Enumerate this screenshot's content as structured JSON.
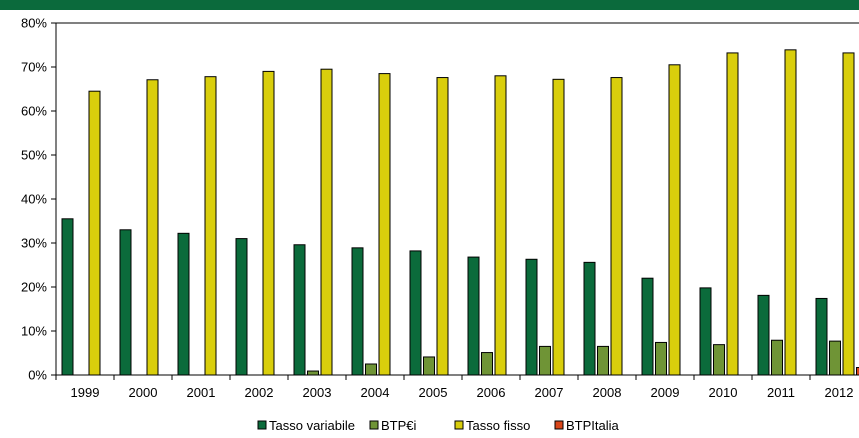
{
  "colors": {
    "top_bar": "#0b6a3c",
    "axis": "#000000"
  },
  "chart_data": {
    "type": "bar",
    "title": "",
    "xlabel": "",
    "ylabel": "",
    "categories": [
      "1999",
      "2000",
      "2001",
      "2002",
      "2003",
      "2004",
      "2005",
      "2006",
      "2007",
      "2008",
      "2009",
      "2010",
      "2011",
      "2012"
    ],
    "ylim": [
      0,
      80
    ],
    "yticks": [
      "0%",
      "10%",
      "20%",
      "30%",
      "40%",
      "50%",
      "60%",
      "70%",
      "80%"
    ],
    "grid": false,
    "legend_position": "bottom",
    "series": [
      {
        "name": "Tasso variabile",
        "color": "#0b6b3b",
        "values": [
          35.5,
          33.0,
          32.2,
          31.0,
          29.6,
          28.9,
          28.2,
          26.8,
          26.3,
          25.6,
          22.0,
          19.8,
          18.1,
          17.4
        ]
      },
      {
        "name": "BTP€i",
        "color": "#6f9436",
        "values": [
          0,
          0,
          0,
          0,
          0.9,
          2.5,
          4.1,
          5.1,
          6.5,
          6.5,
          7.4,
          6.9,
          7.9,
          7.7
        ]
      },
      {
        "name": "Tasso fisso",
        "color": "#d9ce0c",
        "values": [
          64.5,
          67.1,
          67.8,
          69.0,
          69.5,
          68.5,
          67.6,
          68.0,
          67.2,
          67.6,
          70.5,
          73.2,
          73.9,
          73.2
        ]
      },
      {
        "name": "BTPItalia",
        "color": "#d9461a",
        "values": [
          0,
          0,
          0,
          0,
          0,
          0,
          0,
          0,
          0,
          0,
          0,
          0,
          0,
          1.7
        ]
      }
    ]
  }
}
